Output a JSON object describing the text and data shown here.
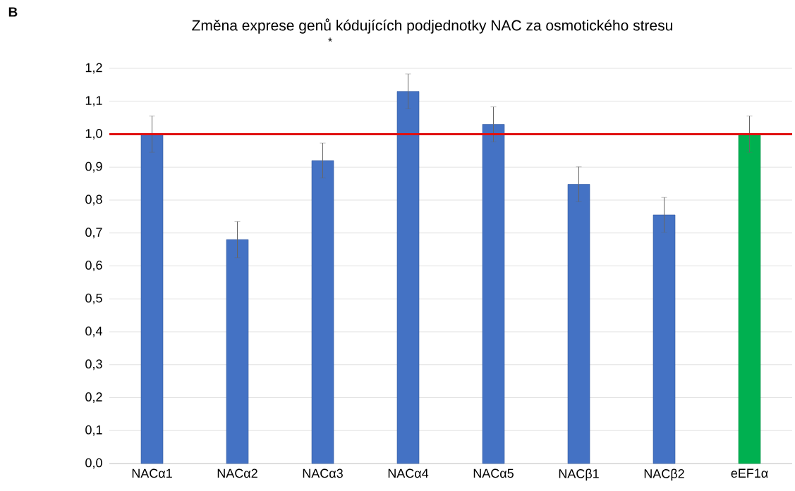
{
  "chart_data": {
    "type": "bar",
    "title": "Změna exprese genů kódujících podjednotky NAC za osmotického stresu",
    "annotations": [
      "B",
      "*"
    ],
    "categories": [
      "NACα1",
      "NACα2",
      "NACα3",
      "NACα4",
      "NACα5",
      "NACβ1",
      "NACβ2",
      "eEF1α"
    ],
    "values": [
      1.0,
      0.68,
      0.92,
      1.13,
      1.03,
      0.848,
      0.755,
      1.0
    ],
    "errors": [
      0.055,
      0.055,
      0.053,
      0.053,
      0.053,
      0.053,
      0.053,
      0.055
    ],
    "colors": [
      "#4472c4",
      "#4472c4",
      "#4472c4",
      "#4472c4",
      "#4472c4",
      "#4472c4",
      "#4472c4",
      "#00b050"
    ],
    "ylim": [
      0,
      1.2
    ],
    "yticks": [
      {
        "value": 0,
        "label": "0,0"
      },
      {
        "value": 0.1,
        "label": "0,1"
      },
      {
        "value": 0.2,
        "label": "0,2"
      },
      {
        "value": 0.3,
        "label": "0,3"
      },
      {
        "value": 0.4,
        "label": "0,4"
      },
      {
        "value": 0.5,
        "label": "0,5"
      },
      {
        "value": 0.6,
        "label": "0,6"
      },
      {
        "value": 0.7,
        "label": "0,7"
      },
      {
        "value": 0.8,
        "label": "0,8"
      },
      {
        "value": 0.9,
        "label": "0,9"
      },
      {
        "value": 1.0,
        "label": "1,0"
      },
      {
        "value": 1.1,
        "label": "1,1"
      },
      {
        "value": 1.2,
        "label": "1,2"
      }
    ],
    "ref_lines": [
      {
        "axis": "y",
        "value": 1.0,
        "color": "#e01010"
      }
    ],
    "grid": "y"
  }
}
